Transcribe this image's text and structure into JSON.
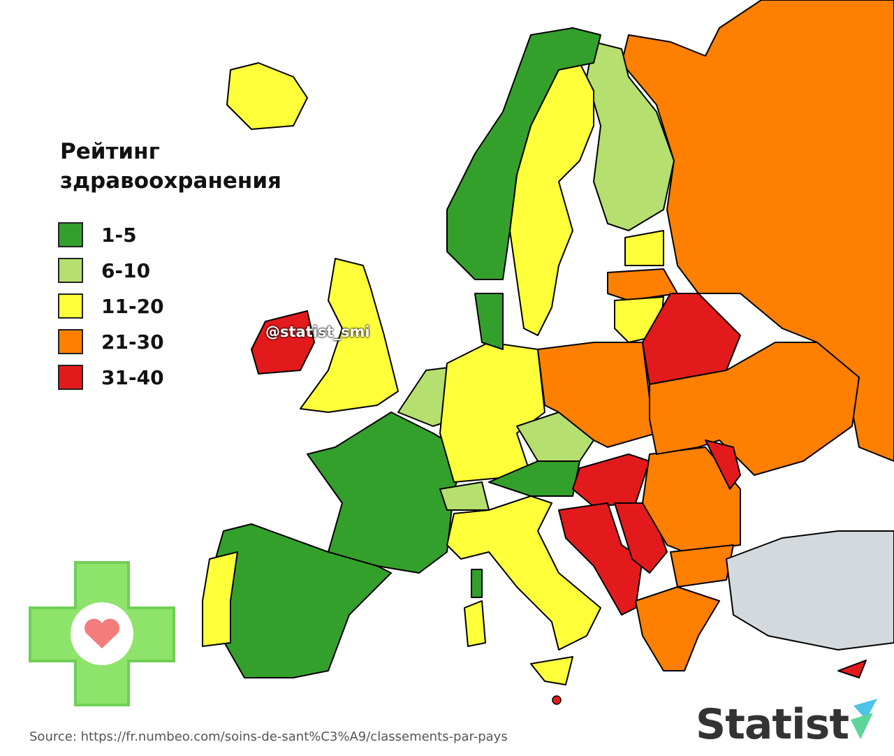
{
  "legend": {
    "title": "Рейтинг здравоохранения",
    "items": [
      {
        "label": "1-5",
        "color": "#34a02c"
      },
      {
        "label": "6-10",
        "color": "#b5df6e"
      },
      {
        "label": "11-20",
        "color": "#ffff3a"
      },
      {
        "label": "21-30",
        "color": "#ff7f00"
      },
      {
        "label": "31-40",
        "color": "#e31a1c"
      }
    ]
  },
  "no_data_color": "#d3d9dc",
  "watermark": "@statist_smi",
  "source": "Source: https://fr.numbeo.com/soins-de-sant%C3%A9/classements-par-pays",
  "logo": "Statist"
}
